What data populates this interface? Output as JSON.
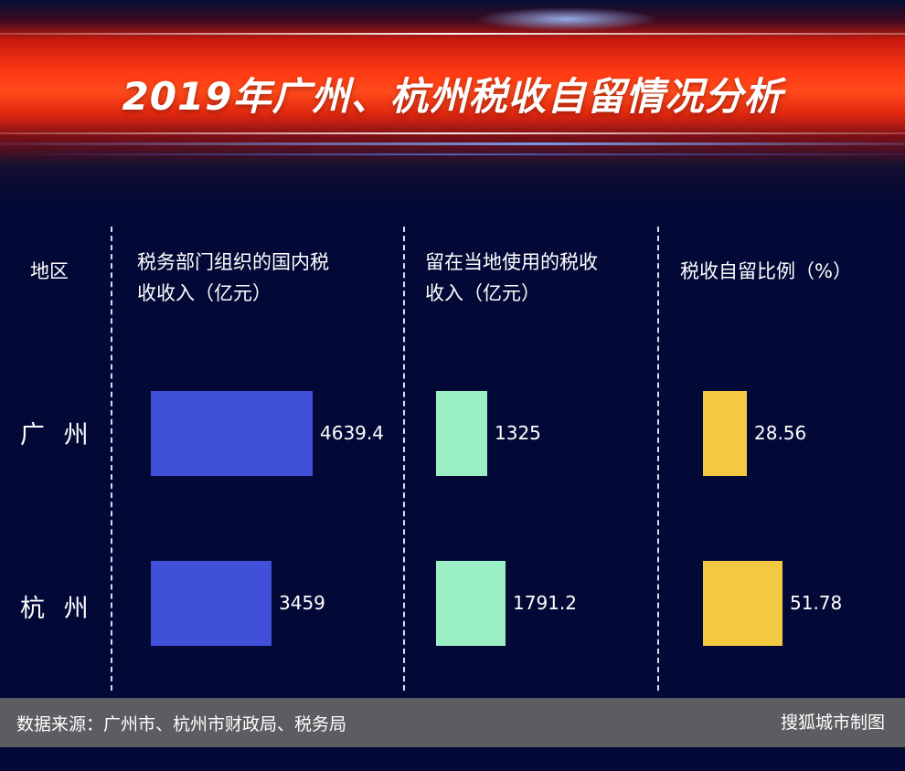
{
  "title": "2019年广州、杭州税收自留情况分析",
  "headers": {
    "region": "地区",
    "col1": [
      "税务部门组织的国内税",
      "收收入（亿元）"
    ],
    "col2": [
      "留在当地使用的税收",
      "收入（亿元）"
    ],
    "col3": "税收自留比例（%）"
  },
  "chart_data": {
    "type": "table",
    "title": "2019年广州、杭州税收自留情况分析",
    "categories": [
      "广州",
      "杭州"
    ],
    "series": [
      {
        "name": "税务部门组织的国内税收收入（亿元）",
        "values": [
          4639.4,
          3459
        ],
        "labels": [
          "4639.4",
          "3459"
        ],
        "color": "#4150d8"
      },
      {
        "name": "留在当地使用的税收收入（亿元）",
        "values": [
          1325,
          1791.2
        ],
        "labels": [
          "1325",
          "1791.2"
        ],
        "color": "#9aefc4"
      },
      {
        "name": "税收自留比例（%）",
        "values": [
          28.56,
          51.78
        ],
        "labels": [
          "28.56",
          "51.78"
        ],
        "color": "#f3c941"
      }
    ]
  },
  "region_labels": [
    "广 州",
    "杭 州"
  ],
  "footer": {
    "source": "数据来源：广州市、杭州市财政局、税务局",
    "credit": "搜狐城市制图"
  }
}
